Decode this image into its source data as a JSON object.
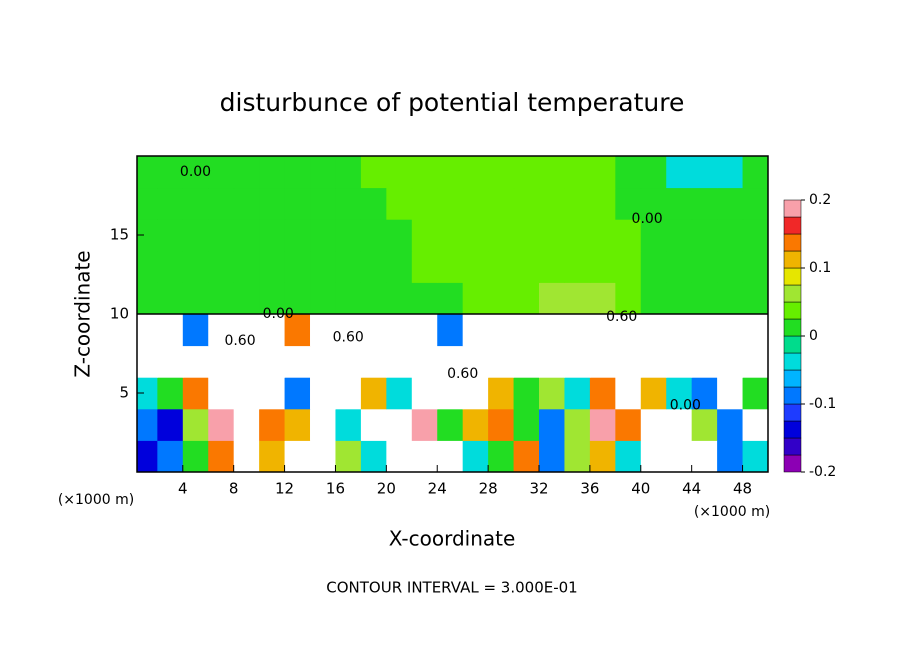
{
  "chart_data": {
    "type": "contour",
    "title": "disturbunce of potential temperature",
    "x_label": "X-coordinate",
    "y_label": "Z-coordinate",
    "x_unit": "(×1000 m)",
    "annotation": "CONTOUR INTERVAL = 3.000E-01",
    "xlim": [
      0.4,
      50
    ],
    "ylim": [
      0,
      20
    ],
    "xticks": [
      4,
      8,
      12,
      16,
      20,
      24,
      28,
      32,
      36,
      40,
      44,
      48
    ],
    "yticks": [
      5,
      10,
      15
    ],
    "x": [
      1,
      3,
      5,
      7,
      9,
      11,
      13,
      15,
      17,
      19,
      21,
      23,
      25,
      27,
      29,
      31,
      33,
      35,
      37,
      39,
      41,
      43,
      45,
      47,
      49
    ],
    "y": [
      1,
      3,
      5,
      7,
      9,
      11,
      13,
      15,
      17,
      19
    ],
    "z": [
      [
        -0.15,
        -0.1,
        0.02,
        0.15,
        0.5,
        0.12,
        0.5,
        0.5,
        0.05,
        -0.05,
        0.5,
        0.5,
        0.5,
        -0.05,
        0.02,
        0.15,
        -0.1,
        0.05,
        0.1,
        -0.05,
        0.5,
        0.5,
        0.5,
        -0.1,
        -0.05
      ],
      [
        -0.1,
        -0.15,
        0.05,
        0.18,
        0.5,
        0.15,
        0.1,
        0.5,
        -0.05,
        0.5,
        0.5,
        0.18,
        0.02,
        0.1,
        0.15,
        0.02,
        -0.1,
        0.05,
        0.18,
        0.15,
        0.5,
        0.5,
        0.05,
        -0.1,
        0.5
      ],
      [
        -0.05,
        0.02,
        0.15,
        0.5,
        0.5,
        0.5,
        -0.1,
        0.5,
        0.5,
        0.1,
        -0.05,
        0.5,
        0.5,
        0.5,
        0.1,
        0.02,
        0.05,
        -0.05,
        0.15,
        0.5,
        0.1,
        -0.05,
        -0.1,
        0.5,
        0.02
      ],
      [
        0.3,
        0.5,
        0.5,
        0.5,
        0.5,
        0.5,
        0.5,
        0.5,
        0.5,
        0.5,
        0.5,
        0.5,
        0.5,
        0.5,
        0.5,
        0.5,
        0.5,
        0.5,
        0.5,
        0.5,
        0.5,
        0.5,
        0.5,
        0.5,
        0.5
      ],
      [
        0.5,
        0.5,
        -0.1,
        0.5,
        0.5,
        0.5,
        0.15,
        0.5,
        0.5,
        0.5,
        0.5,
        0.5,
        -0.1,
        0.5,
        0.5,
        0.5,
        0.5,
        0.5,
        0.5,
        0.5,
        0.5,
        0.5,
        0.5,
        0.5,
        0.5
      ],
      [
        0.01,
        0.01,
        0.01,
        0.01,
        0.01,
        0.01,
        0.01,
        0.01,
        0.01,
        0.01,
        0.01,
        0.01,
        0.01,
        0.04,
        0.04,
        0.04,
        0.06,
        0.06,
        0.06,
        0.03,
        0.01,
        0.01,
        0.01,
        0.01,
        0.01
      ],
      [
        0.01,
        0.01,
        0.01,
        0.01,
        0.01,
        0.01,
        0.01,
        0.01,
        0.01,
        0.01,
        0.01,
        0.03,
        0.03,
        0.03,
        0.03,
        0.03,
        0.03,
        0.03,
        0.03,
        0.03,
        0.01,
        0.01,
        0.01,
        0.01,
        0.01
      ],
      [
        0.01,
        0.01,
        0.01,
        0.01,
        0.01,
        0.01,
        0.01,
        0.01,
        0.01,
        0.01,
        0.01,
        0.03,
        0.03,
        0.03,
        0.03,
        0.03,
        0.03,
        0.03,
        0.03,
        0.03,
        0.01,
        0.01,
        0.01,
        0.01,
        0.01
      ],
      [
        0.01,
        0.01,
        0.01,
        0.01,
        0.01,
        0.01,
        0.01,
        0.01,
        0.01,
        0.01,
        0.03,
        0.03,
        0.03,
        0.03,
        0.03,
        0.03,
        0.03,
        0.03,
        0.03,
        0.01,
        0.01,
        0.01,
        0.01,
        0.01,
        0.01
      ],
      [
        0.01,
        0.01,
        0.01,
        0.01,
        0.01,
        0.01,
        0.01,
        0.01,
        0.01,
        0.03,
        0.03,
        0.03,
        0.03,
        0.03,
        0.03,
        0.03,
        0.03,
        0.03,
        0.03,
        0.01,
        0.01,
        -0.04,
        -0.04,
        -0.04,
        0.01
      ]
    ],
    "contour_labels": [
      {
        "x": 5,
        "y": 19,
        "value": 0,
        "label": "0.00"
      },
      {
        "x": 40.5,
        "y": 16,
        "value": 0,
        "label": "0.00"
      },
      {
        "x": 11.5,
        "y": 10,
        "value": 0,
        "label": "0.00"
      },
      {
        "x": 38.5,
        "y": 9.8,
        "value": 0.6,
        "label": "0.60"
      },
      {
        "x": 8.5,
        "y": 8.3,
        "value": 0.6,
        "label": "0.60"
      },
      {
        "x": 17,
        "y": 8.5,
        "value": 0.6,
        "label": "0.60"
      },
      {
        "x": 26,
        "y": 6.2,
        "value": 0.6,
        "label": "0.60"
      },
      {
        "x": 43.5,
        "y": 4.2,
        "value": 0,
        "label": "0.00"
      }
    ],
    "colorbar": {
      "lim": [
        -0.2,
        0.2
      ],
      "ticks": [
        -0.2,
        -0.1,
        0,
        0.1,
        0.2
      ],
      "colors": [
        "#8c00b4",
        "#3200c8",
        "#0000dc",
        "#1e3cff",
        "#0078ff",
        "#00b4ff",
        "#00dcdc",
        "#00dc8c",
        "#22dd22",
        "#66ee00",
        "#a0e632",
        "#e6e600",
        "#f0b400",
        "#fa7800",
        "#f02828",
        "#f8a0aa"
      ]
    }
  }
}
